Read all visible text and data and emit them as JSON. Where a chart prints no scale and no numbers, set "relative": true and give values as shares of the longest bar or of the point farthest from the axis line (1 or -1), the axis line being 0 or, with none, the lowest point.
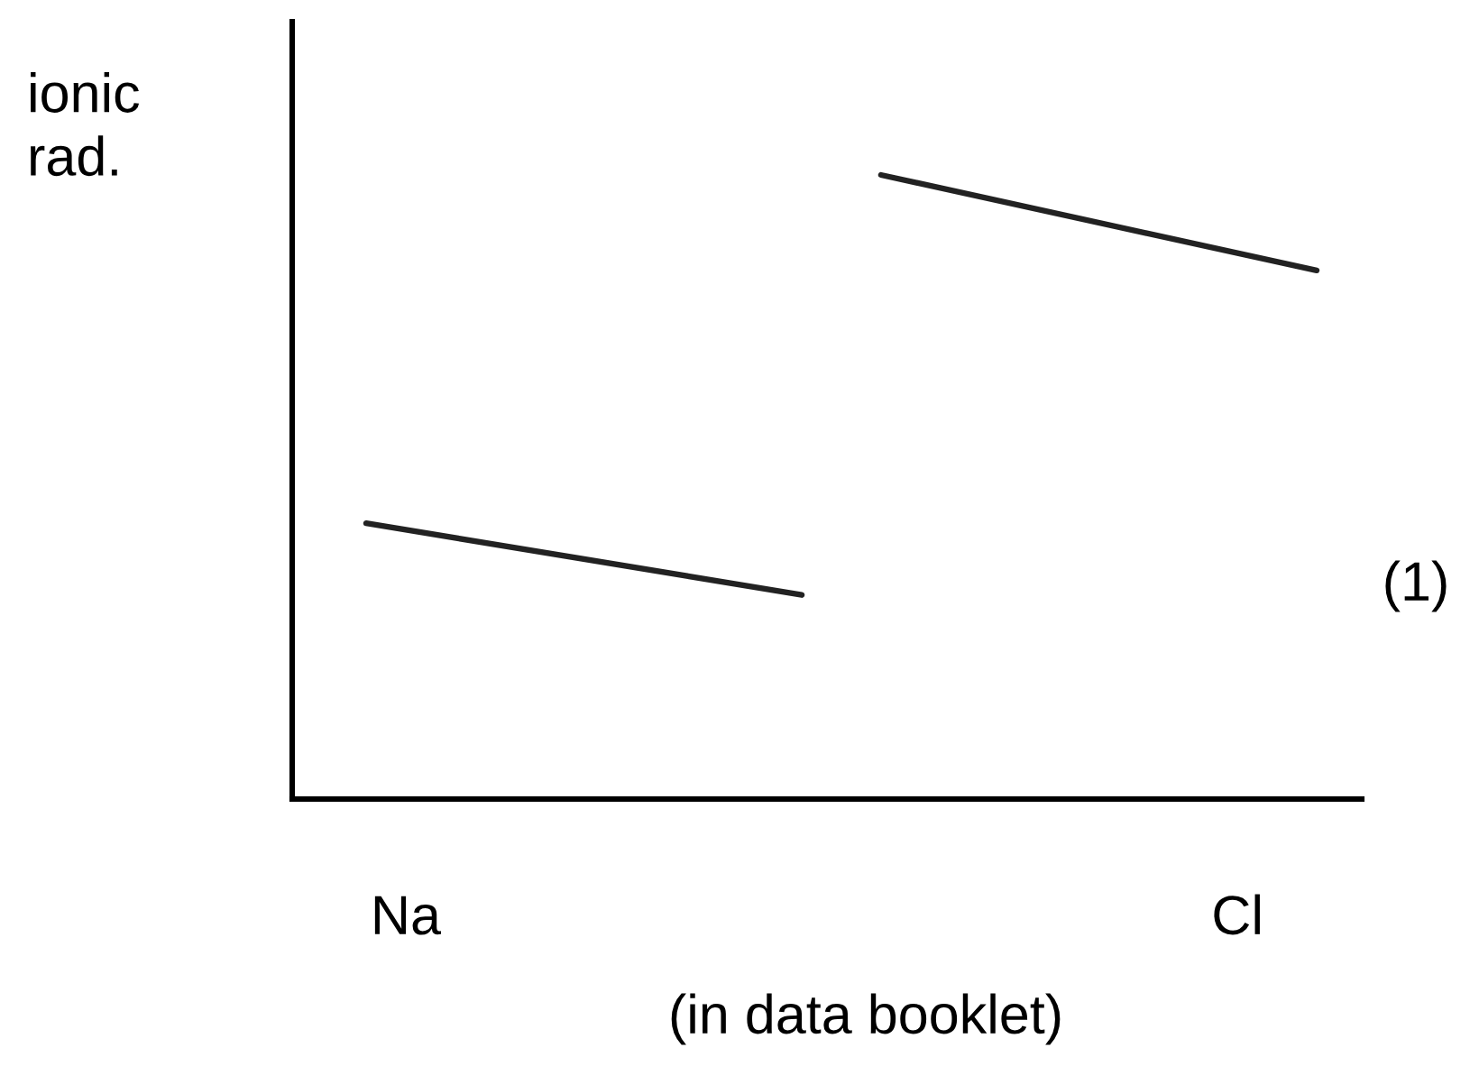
{
  "chart_data": {
    "type": "line",
    "relative": true,
    "ylabel": "ionic\nrad.",
    "xlabel": "(in data booklet)",
    "categories": [
      null,
      "Na",
      null,
      null,
      null,
      null,
      null,
      null,
      null,
      null,
      null,
      null,
      null,
      null,
      null,
      null,
      null,
      null,
      null,
      null,
      null,
      null,
      "Cl",
      null,
      null
    ],
    "series": [
      {
        "color": "#222222",
        "values": [
          0.442,
          null,
          null,
          null,
          null,
          null,
          null,
          null,
          null,
          null,
          null,
          0.327,
          null,
          null,
          null,
          null,
          null,
          null,
          null,
          null,
          null,
          null,
          null,
          null,
          null
        ]
      },
      {
        "color": "#222222",
        "values": [
          null,
          null,
          null,
          null,
          null,
          null,
          null,
          null,
          null,
          null,
          null,
          null,
          null,
          1,
          null,
          null,
          null,
          null,
          null,
          null,
          null,
          null,
          null,
          null,
          0.847
        ]
      }
    ],
    "annotations": [
      "(1)"
    ],
    "grid": false,
    "legend": false,
    "marker": "none",
    "line_style": "solid"
  }
}
